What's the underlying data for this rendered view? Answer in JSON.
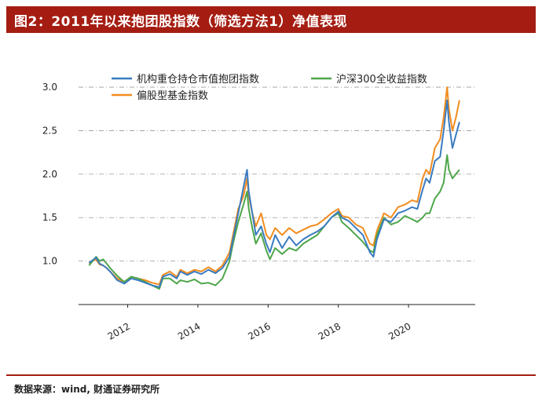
{
  "title": "图2：2011年以来抱团股指数（筛选方法1）净值表现",
  "source": "数据来源：wind, 财通证券研究所",
  "chart_data": {
    "type": "line",
    "title": "",
    "xlabel": "",
    "ylabel": "",
    "xlim": [
      2010.6,
      2021.9
    ],
    "ylim": [
      0.5,
      3.1
    ],
    "yticks": [
      "1.0",
      "1.5",
      "2.0",
      "2.5",
      "3.0"
    ],
    "xticks": [
      "2012",
      "2014",
      "2016",
      "2018",
      "2020"
    ],
    "grid": "horizontal dash-dot",
    "legend_position": "top",
    "series": [
      {
        "name": "机构重仓持仓市值抱团指数",
        "color": "#3a7bbf",
        "x": [
          2010.9,
          2011.0,
          2011.1,
          2011.2,
          2011.3,
          2011.4,
          2011.5,
          2011.7,
          2011.9,
          2012.1,
          2012.3,
          2012.5,
          2012.7,
          2012.9,
          2013.0,
          2013.2,
          2013.4,
          2013.5,
          2013.7,
          2013.9,
          2014.1,
          2014.3,
          2014.5,
          2014.7,
          2014.9,
          2015.0,
          2015.15,
          2015.3,
          2015.4,
          2015.45,
          2015.55,
          2015.65,
          2015.8,
          2015.95,
          2016.05,
          2016.2,
          2016.4,
          2016.6,
          2016.8,
          2017.0,
          2017.2,
          2017.4,
          2017.6,
          2017.8,
          2018.0,
          2018.1,
          2018.3,
          2018.5,
          2018.7,
          2018.9,
          2019.0,
          2019.1,
          2019.3,
          2019.5,
          2019.7,
          2019.9,
          2020.1,
          2020.25,
          2020.4,
          2020.5,
          2020.6,
          2020.75,
          2020.9,
          2021.0,
          2021.1,
          2021.15,
          2021.25,
          2021.35,
          2021.45
        ],
        "values": [
          0.98,
          1.01,
          1.04,
          0.97,
          0.95,
          0.92,
          0.88,
          0.78,
          0.74,
          0.8,
          0.78,
          0.75,
          0.72,
          0.7,
          0.82,
          0.85,
          0.8,
          0.88,
          0.84,
          0.88,
          0.85,
          0.9,
          0.86,
          0.92,
          1.05,
          1.25,
          1.55,
          1.85,
          2.05,
          1.8,
          1.55,
          1.3,
          1.4,
          1.2,
          1.1,
          1.3,
          1.15,
          1.28,
          1.18,
          1.25,
          1.3,
          1.34,
          1.4,
          1.5,
          1.57,
          1.5,
          1.46,
          1.38,
          1.3,
          1.1,
          1.05,
          1.25,
          1.48,
          1.45,
          1.55,
          1.58,
          1.62,
          1.6,
          1.82,
          1.95,
          1.9,
          2.15,
          2.2,
          2.5,
          2.85,
          2.6,
          2.3,
          2.45,
          2.6
        ]
      },
      {
        "name": "沪深300全收益指数",
        "color": "#4ea64a",
        "x": [
          2010.9,
          2011.0,
          2011.1,
          2011.2,
          2011.3,
          2011.4,
          2011.5,
          2011.7,
          2011.9,
          2012.1,
          2012.3,
          2012.5,
          2012.7,
          2012.9,
          2013.0,
          2013.2,
          2013.4,
          2013.5,
          2013.7,
          2013.9,
          2014.1,
          2014.3,
          2014.5,
          2014.7,
          2014.9,
          2015.0,
          2015.15,
          2015.3,
          2015.4,
          2015.45,
          2015.55,
          2015.65,
          2015.8,
          2015.95,
          2016.05,
          2016.2,
          2016.4,
          2016.6,
          2016.8,
          2017.0,
          2017.2,
          2017.4,
          2017.6,
          2017.8,
          2018.0,
          2018.1,
          2018.3,
          2018.5,
          2018.7,
          2018.9,
          2019.0,
          2019.1,
          2019.3,
          2019.5,
          2019.7,
          2019.9,
          2020.1,
          2020.25,
          2020.4,
          2020.5,
          2020.6,
          2020.75,
          2020.9,
          2021.0,
          2021.1,
          2021.15,
          2021.25,
          2021.35,
          2021.45
        ],
        "values": [
          0.95,
          1.0,
          1.05,
          1.0,
          1.02,
          0.97,
          0.92,
          0.83,
          0.76,
          0.82,
          0.8,
          0.76,
          0.72,
          0.68,
          0.8,
          0.8,
          0.74,
          0.78,
          0.76,
          0.79,
          0.74,
          0.75,
          0.72,
          0.8,
          1.0,
          1.2,
          1.45,
          1.65,
          1.8,
          1.6,
          1.38,
          1.2,
          1.32,
          1.12,
          1.02,
          1.15,
          1.08,
          1.15,
          1.12,
          1.2,
          1.25,
          1.3,
          1.4,
          1.5,
          1.55,
          1.45,
          1.38,
          1.3,
          1.22,
          1.12,
          1.1,
          1.3,
          1.5,
          1.42,
          1.45,
          1.52,
          1.48,
          1.45,
          1.5,
          1.55,
          1.55,
          1.72,
          1.8,
          1.9,
          2.22,
          2.05,
          1.95,
          2.0,
          2.05
        ]
      },
      {
        "name": "偏股型基金指数",
        "color": "#f28c1e",
        "x": [
          2010.9,
          2011.0,
          2011.1,
          2011.2,
          2011.3,
          2011.4,
          2011.5,
          2011.7,
          2011.9,
          2012.1,
          2012.3,
          2012.5,
          2012.7,
          2012.9,
          2013.0,
          2013.2,
          2013.4,
          2013.5,
          2013.7,
          2013.9,
          2014.1,
          2014.3,
          2014.5,
          2014.7,
          2014.9,
          2015.0,
          2015.15,
          2015.3,
          2015.4,
          2015.45,
          2015.55,
          2015.65,
          2015.8,
          2015.95,
          2016.05,
          2016.2,
          2016.4,
          2016.6,
          2016.8,
          2017.0,
          2017.2,
          2017.4,
          2017.6,
          2017.8,
          2018.0,
          2018.1,
          2018.3,
          2018.5,
          2018.7,
          2018.9,
          2019.0,
          2019.1,
          2019.3,
          2019.5,
          2019.7,
          2019.9,
          2020.1,
          2020.25,
          2020.4,
          2020.5,
          2020.6,
          2020.75,
          2020.9,
          2021.0,
          2021.1,
          2021.15,
          2021.25,
          2021.35,
          2021.45
        ],
        "values": [
          0.97,
          1.0,
          1.02,
          0.96,
          0.95,
          0.92,
          0.88,
          0.8,
          0.76,
          0.82,
          0.8,
          0.78,
          0.75,
          0.73,
          0.84,
          0.88,
          0.82,
          0.9,
          0.86,
          0.9,
          0.88,
          0.93,
          0.88,
          0.95,
          1.1,
          1.3,
          1.6,
          1.75,
          1.95,
          1.75,
          1.55,
          1.4,
          1.55,
          1.3,
          1.25,
          1.38,
          1.3,
          1.38,
          1.32,
          1.36,
          1.4,
          1.42,
          1.48,
          1.55,
          1.6,
          1.52,
          1.5,
          1.42,
          1.38,
          1.2,
          1.18,
          1.35,
          1.55,
          1.5,
          1.62,
          1.65,
          1.7,
          1.68,
          1.95,
          2.05,
          2.0,
          2.3,
          2.4,
          2.65,
          3.0,
          2.75,
          2.5,
          2.65,
          2.85
        ]
      }
    ]
  }
}
